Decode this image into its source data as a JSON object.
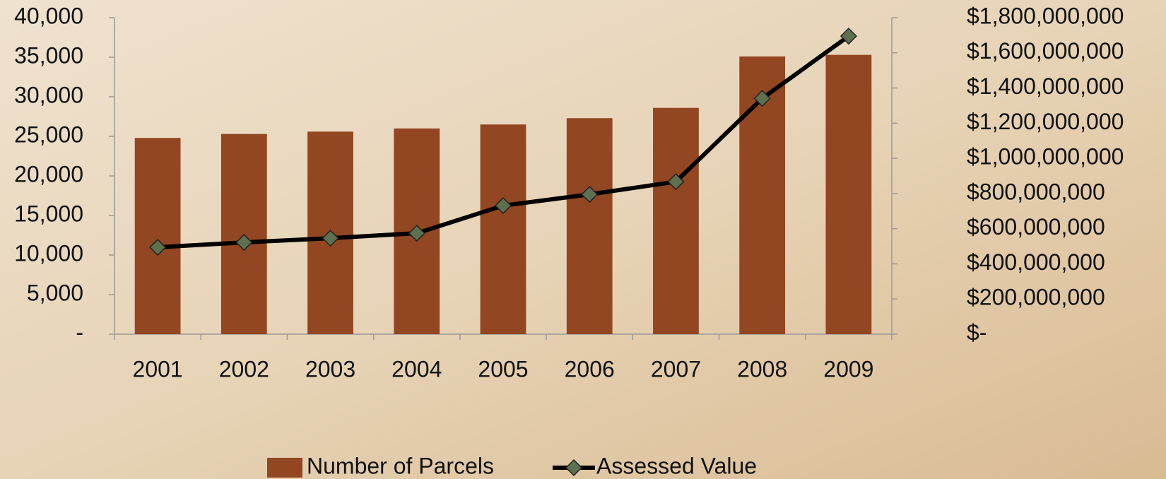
{
  "chart_data": {
    "type": "bar_line",
    "categories": [
      "2001",
      "2002",
      "2003",
      "2004",
      "2005",
      "2006",
      "2007",
      "2008",
      "2009"
    ],
    "series": [
      {
        "name": "Number of Parcels",
        "color": "#934622",
        "values": [
          24800,
          25300,
          25600,
          26000,
          26500,
          27300,
          28600,
          35100,
          35300
        ]
      },
      {
        "name": "Assessed Value",
        "color": "#000000",
        "marker_color": "#5f7050",
        "axis": "y2",
        "values": [
          494000000,
          522000000,
          546000000,
          574000000,
          731000000,
          795000000,
          867000000,
          1341000000,
          1695000000
        ]
      }
    ],
    "ylim": [
      0,
      40000
    ],
    "yticks": [
      {
        "value": 0,
        "label": "-"
      },
      {
        "value": 5000,
        "label": "5,000"
      },
      {
        "value": 10000,
        "label": "10,000"
      },
      {
        "value": 15000,
        "label": "15,000"
      },
      {
        "value": 20000,
        "label": "20,000"
      },
      {
        "value": 25000,
        "label": "25,000"
      },
      {
        "value": 30000,
        "label": "30,000"
      },
      {
        "value": 35000,
        "label": "35,000"
      },
      {
        "value": 40000,
        "label": "40,000"
      }
    ],
    "y2lim": [
      0,
      1800000000
    ],
    "y2ticks": [
      {
        "value": 0,
        "label": "$-"
      },
      {
        "value": 200000000,
        "label": "$200,000,000"
      },
      {
        "value": 400000000,
        "label": "$400,000,000"
      },
      {
        "value": 600000000,
        "label": "$600,000,000"
      },
      {
        "value": 800000000,
        "label": "$800,000,000"
      },
      {
        "value": 1000000000,
        "label": "$1,000,000,000"
      },
      {
        "value": 1200000000,
        "label": "$1,200,000,000"
      },
      {
        "value": 1400000000,
        "label": "$1,400,000,000"
      },
      {
        "value": 1600000000,
        "label": "$1,600,000,000"
      },
      {
        "value": 1800000000,
        "label": "$1,800,000,000"
      }
    ],
    "legend": "bottom"
  }
}
